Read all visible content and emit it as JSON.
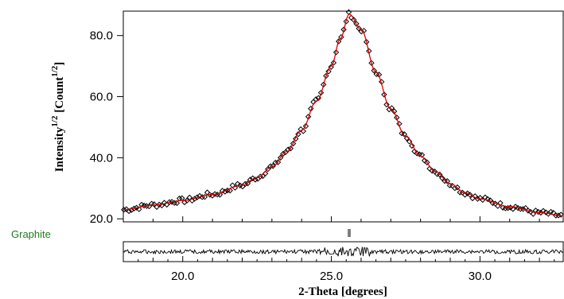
{
  "chart_data": {
    "type": "scatter",
    "title": "",
    "xlabel": "2-Theta [degrees]",
    "ylabel": {
      "base": "Intensity",
      "sup": "1/2",
      "unit_open": " [Count",
      "unit_sup": "1/2",
      "unit_close": "]"
    },
    "xlim": [
      18.0,
      32.8
    ],
    "ylim": [
      19.0,
      88.0
    ],
    "x_ticks": [
      20.0,
      25.0,
      30.0
    ],
    "x_tick_labels": [
      "20.0",
      "25.0",
      "30.0"
    ],
    "y_ticks": [
      20.0,
      40.0,
      60.0,
      80.0
    ],
    "y_tick_labels": [
      "20.0",
      "40.0",
      "60.0",
      "80.0"
    ],
    "grid": false,
    "fit_curve": {
      "x": [
        18.0,
        19.0,
        20.0,
        21.0,
        22.0,
        22.5,
        23.0,
        23.5,
        24.0,
        24.5,
        25.0,
        25.3,
        25.6,
        26.0,
        26.5,
        27.0,
        27.5,
        28.0,
        28.5,
        29.0,
        29.5,
        30.0,
        31.0,
        32.0,
        32.8
      ],
      "y": [
        23.0,
        24.5,
        26.0,
        28.0,
        31.0,
        33.5,
        37.0,
        42.0,
        49.0,
        58.5,
        70.0,
        79.0,
        87.0,
        82.0,
        68.0,
        56.0,
        47.0,
        40.5,
        35.5,
        31.5,
        28.5,
        26.5,
        24.0,
        22.0,
        21.0
      ],
      "color": "#dd0000"
    },
    "observed_color": "#000000",
    "difference_panel": {
      "description_free": true,
      "ylim": [
        -1,
        1
      ]
    },
    "phases": [
      {
        "name": "Graphite",
        "peak_positions": [
          25.6
        ],
        "color": "#1e7a1e"
      }
    ]
  }
}
